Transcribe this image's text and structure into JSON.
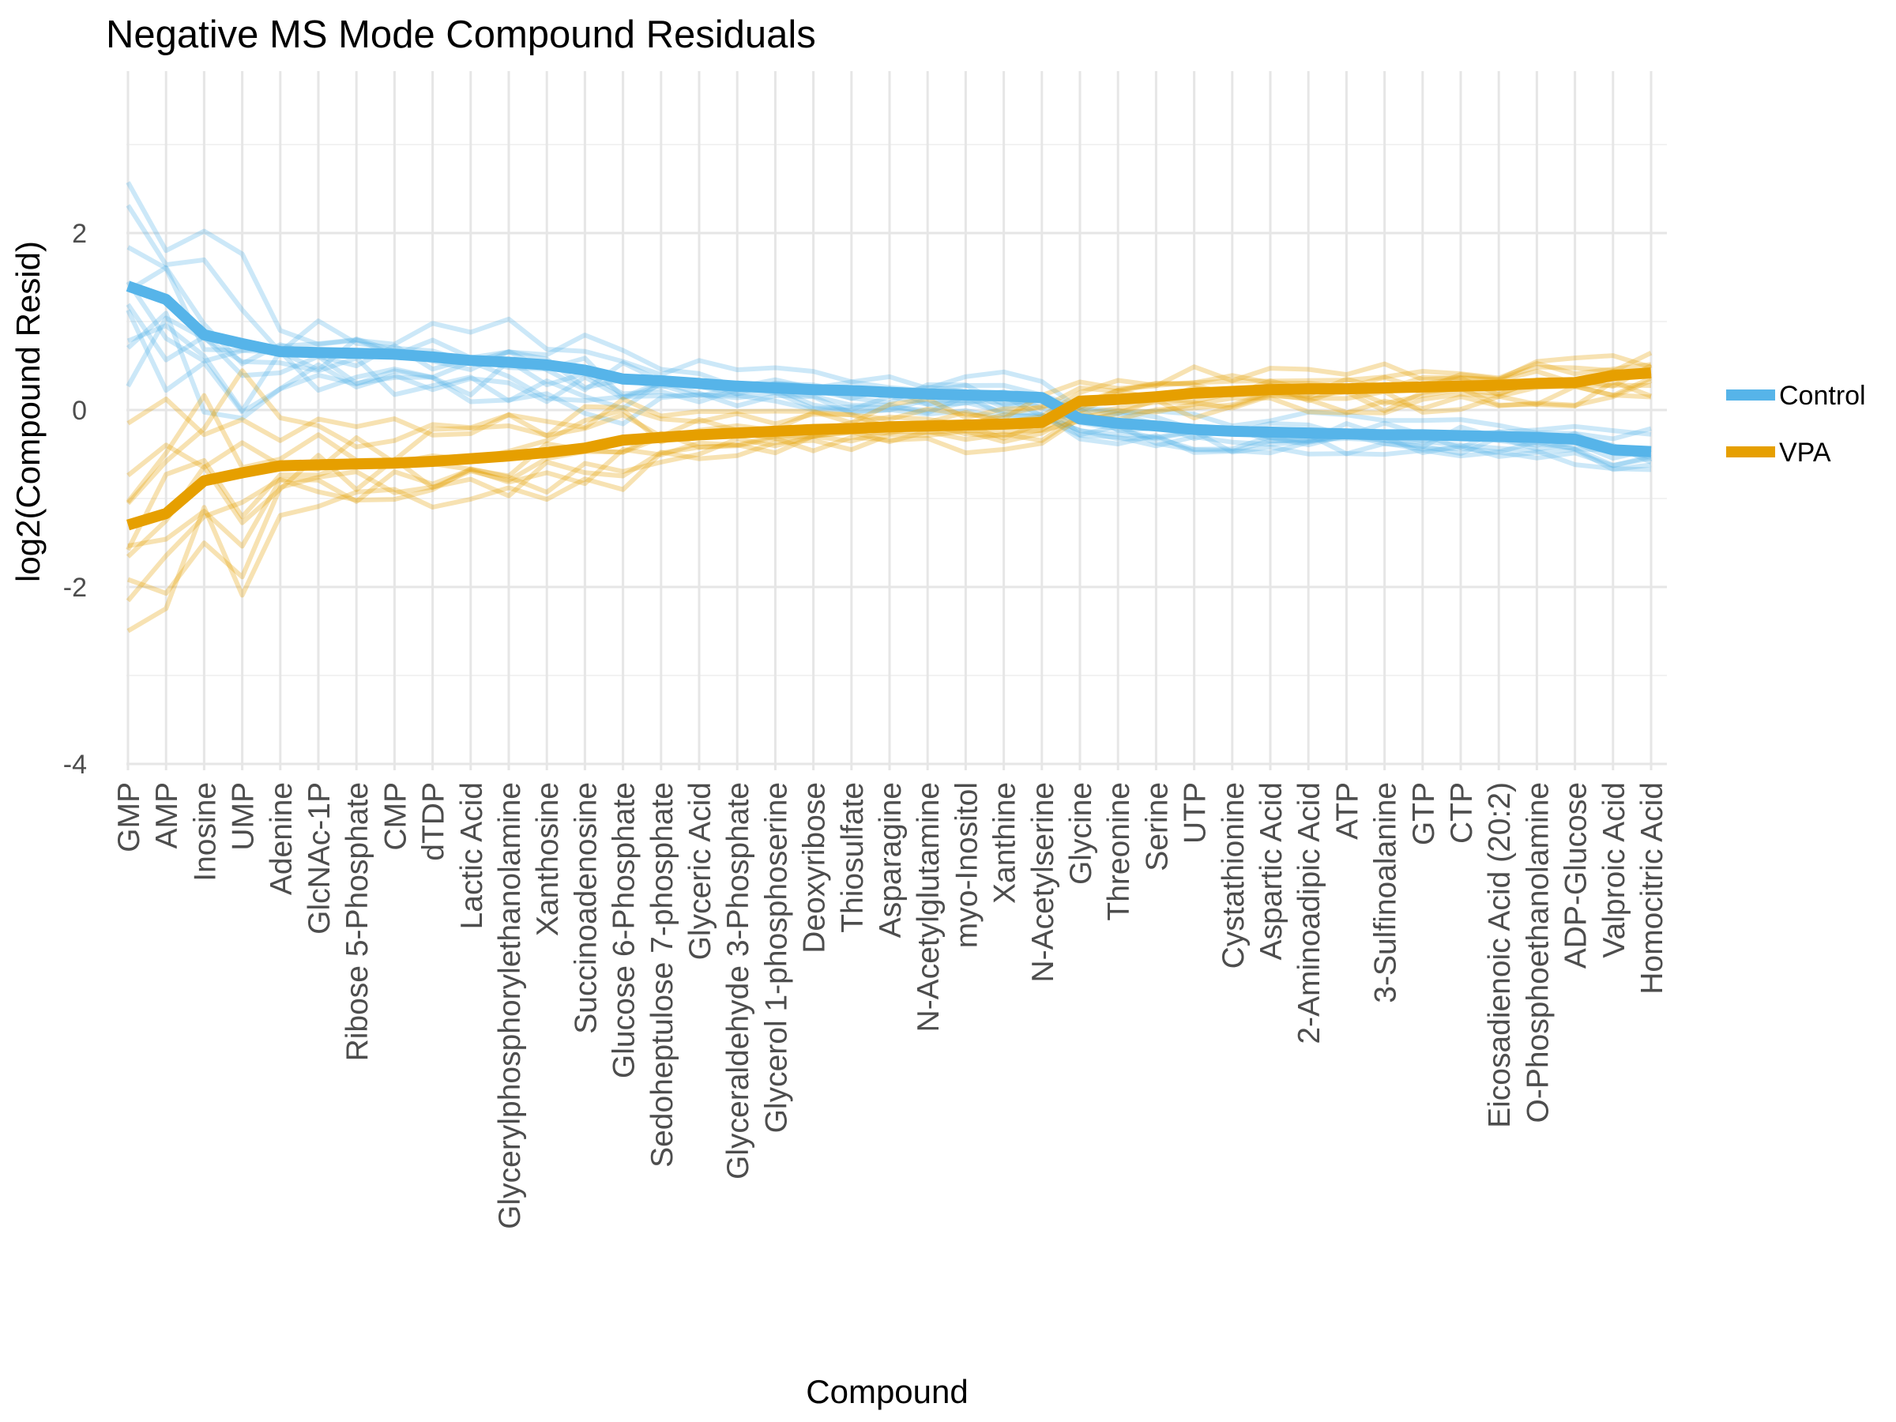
{
  "chart_data": {
    "type": "line",
    "title": "Negative MS Mode Compound Residuals",
    "xlabel": "Compound",
    "ylabel": "log2(Compound Resid)",
    "ylim": [
      -4,
      3.6
    ],
    "yticks": [
      "2",
      "0",
      "-2",
      "-4"
    ],
    "grid": true,
    "legend_position": "right",
    "categories": [
      "GMP",
      "AMP",
      "Inosine",
      "UMP",
      "Adenine",
      "GlcNAc-1P",
      "Ribose 5-Phosphate",
      "CMP",
      "dTDP",
      "Lactic Acid",
      "Glycerylphosphorylethanolamine",
      "Xanthosine",
      "Succinoadenosine",
      "Glucose 6-Phosphate",
      "Sedoheptulose 7-phosphate",
      "Glyceric Acid",
      "Glyceraldehyde 3-Phosphate",
      "Glycerol 1-phosphoserine",
      "Deoxyribose",
      "Thiosulfate",
      "Asparagine",
      "N-Acetylglutamine",
      "myo-Inositol",
      "Xanthine",
      "N-Acetylserine",
      "Glycine",
      "Threonine",
      "Serine",
      "UTP",
      "Cystathionine",
      "Aspartic Acid",
      "2-Aminoadipic Acid",
      "ATP",
      "3-Sulfinoalanine",
      "GTP",
      "CTP",
      "Eicosadienoic Acid (20:2)",
      "O-Phosphoethanolamine",
      "ADP-Glucose",
      "Valproic Acid",
      "Homocitric Acid"
    ],
    "series": [
      {
        "name": "Control",
        "color": "#56B4E9",
        "values": [
          1.4,
          1.25,
          0.85,
          0.75,
          0.66,
          0.65,
          0.64,
          0.63,
          0.6,
          0.56,
          0.54,
          0.51,
          0.45,
          0.35,
          0.33,
          0.3,
          0.27,
          0.25,
          0.23,
          0.22,
          0.2,
          0.18,
          0.17,
          0.16,
          0.14,
          -0.1,
          -0.15,
          -0.18,
          -0.22,
          -0.24,
          -0.25,
          -0.26,
          -0.27,
          -0.28,
          -0.28,
          -0.29,
          -0.3,
          -0.31,
          -0.33,
          -0.45,
          -0.47
        ]
      },
      {
        "name": "VPA",
        "color": "#E69F00",
        "values": [
          -1.3,
          -1.17,
          -0.8,
          -0.71,
          -0.63,
          -0.62,
          -0.61,
          -0.6,
          -0.58,
          -0.55,
          -0.52,
          -0.48,
          -0.43,
          -0.34,
          -0.31,
          -0.28,
          -0.26,
          -0.24,
          -0.22,
          -0.21,
          -0.19,
          -0.18,
          -0.17,
          -0.16,
          -0.14,
          0.1,
          0.12,
          0.15,
          0.19,
          0.21,
          0.23,
          0.24,
          0.24,
          0.25,
          0.26,
          0.27,
          0.28,
          0.3,
          0.31,
          0.39,
          0.42
        ]
      }
    ]
  }
}
